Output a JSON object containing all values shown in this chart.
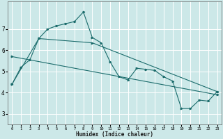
{
  "xlabel": "Humidex (Indice chaleur)",
  "ylabel": "",
  "bg_color": "#cce8e8",
  "line_color": "#1a6b6b",
  "grid_color": "#ffffff",
  "xlim": [
    -0.5,
    23.5
  ],
  "ylim": [
    2.5,
    8.3
  ],
  "yticks": [
    3,
    4,
    5,
    6,
    7
  ],
  "xticks": [
    0,
    1,
    2,
    3,
    4,
    5,
    6,
    7,
    8,
    9,
    10,
    11,
    12,
    13,
    14,
    15,
    16,
    17,
    18,
    19,
    20,
    21,
    22,
    23
  ],
  "line1_x": [
    0,
    1,
    2,
    3,
    4,
    5,
    6,
    7,
    8,
    9,
    10,
    11,
    12,
    13,
    14,
    15,
    16,
    17,
    18,
    19,
    20,
    21,
    22,
    23
  ],
  "line1_y": [
    4.4,
    5.2,
    5.55,
    6.55,
    7.0,
    7.15,
    7.25,
    7.35,
    7.8,
    6.6,
    6.35,
    5.45,
    4.75,
    4.6,
    5.15,
    5.1,
    5.05,
    4.75,
    4.55,
    3.25,
    3.25,
    3.65,
    3.6,
    4.05
  ],
  "line2_x": [
    0,
    3,
    9,
    23
  ],
  "line2_y": [
    4.4,
    6.55,
    6.35,
    4.05
  ],
  "line3_x": [
    0,
    23
  ],
  "line3_y": [
    5.7,
    3.9
  ]
}
